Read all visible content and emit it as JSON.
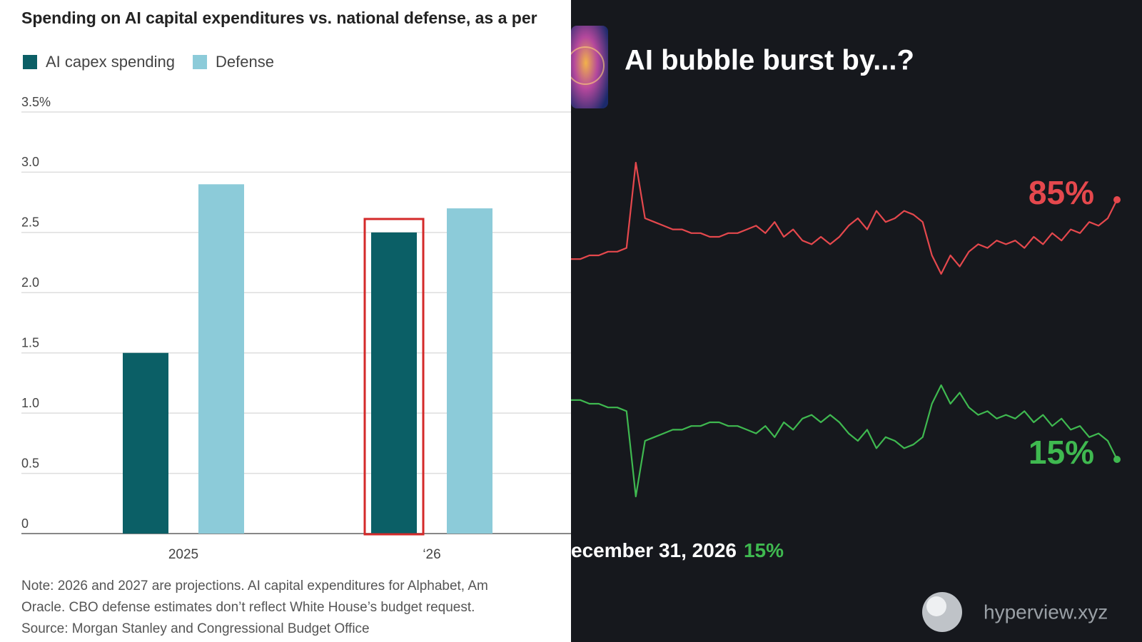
{
  "chart_data": [
    {
      "type": "bar",
      "title": "Spending on AI capital expenditures vs. national defense, as a per",
      "categories": [
        "2025",
        "‘26"
      ],
      "series": [
        {
          "name": "AI capex spending",
          "color": "#0b5f66",
          "values": [
            1.5,
            2.5
          ]
        },
        {
          "name": "Defense",
          "color": "#8ccbd9",
          "values": [
            2.9,
            2.7
          ]
        }
      ],
      "ylim": [
        0,
        3.5
      ],
      "yticks": [
        0,
        0.5,
        {
          "value": 1,
          "label": "1.0"
        },
        1.5,
        {
          "value": 2,
          "label": "2.0"
        },
        2.5,
        {
          "value": 3,
          "label": "3.0"
        },
        {
          "value": 3.5,
          "label": "3.5%"
        }
      ],
      "grid": true,
      "notes": [
        "Note: 2026 and 2027 are projections. AI capital expenditures for Alphabet, Am",
        "Oracle. CBO defense estimates don’t reflect White House’s budget request.",
        "Source: Morgan Stanley and Congressional Budget Office"
      ]
    },
    {
      "type": "line",
      "title": "AI bubble burst by...?",
      "ylim": [
        0,
        100
      ],
      "series": [
        {
          "color": "#e5484d",
          "label": "85%",
          "values": [
            69,
            69,
            70,
            70,
            71,
            71,
            72,
            95,
            80,
            79,
            78,
            77,
            77,
            76,
            76,
            75,
            75,
            76,
            76,
            77,
            78,
            76,
            79,
            75,
            77,
            74,
            73,
            75,
            73,
            75,
            78,
            80,
            77,
            82,
            79,
            80,
            82,
            81,
            79,
            70,
            65,
            70,
            67,
            71,
            73,
            72,
            74,
            73,
            74,
            72,
            75,
            73,
            76,
            74,
            77,
            76,
            79,
            78,
            80,
            85
          ]
        },
        {
          "color": "#3fb950",
          "label": "15%",
          "values": [
            31,
            31,
            30,
            30,
            29,
            29,
            28,
            5,
            20,
            21,
            22,
            23,
            23,
            24,
            24,
            25,
            25,
            24,
            24,
            23,
            22,
            24,
            21,
            25,
            23,
            26,
            27,
            25,
            27,
            25,
            22,
            20,
            23,
            18,
            21,
            20,
            18,
            19,
            21,
            30,
            35,
            30,
            33,
            29,
            27,
            28,
            26,
            27,
            26,
            28,
            25,
            27,
            24,
            26,
            23,
            24,
            21,
            22,
            20,
            15
          ]
        }
      ],
      "footer": {
        "label": "ecember 31, 2026",
        "value_label": "15%"
      },
      "watermark": "hyperview.xyz"
    }
  ]
}
